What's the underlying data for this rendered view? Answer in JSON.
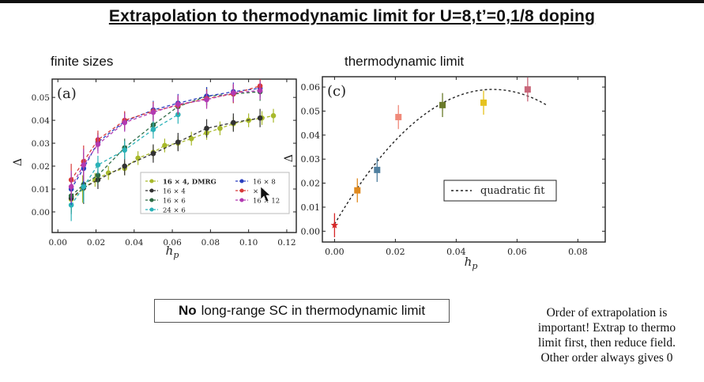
{
  "slide": {
    "title": "Extrapolation to thermodynamic limit  for U=8,t’=0,1/8 doping",
    "label_left": "finite sizes",
    "label_right": "thermodynamic limit",
    "box_bold": "No",
    "box_rest": "long-range SC in thermodynamic limit",
    "note_lines": [
      "Order of extrapolation is",
      "important!  Extrap to thermo",
      "limit first, then reduce field.",
      "Other order always gives 0"
    ]
  },
  "chart_data": [
    {
      "type": "line",
      "panel_label": "(a)",
      "xlabel": "h_p",
      "ylabel": "Δ",
      "xlim": [
        -0.003,
        0.125
      ],
      "ylim": [
        -0.009,
        0.058
      ],
      "xticks": [
        "0.00",
        "0.02",
        "0.04",
        "0.06",
        "0.08",
        "0.10",
        "0.12"
      ],
      "yticks": [
        "0.00",
        "0.01",
        "0.02",
        "0.03",
        "0.04",
        "0.05"
      ],
      "series": [
        {
          "name": "16 × 4, DMRG",
          "color": "#a8b92c",
          "x": [
            0.007,
            0.013,
            0.0195,
            0.0265,
            0.035,
            0.042,
            0.05,
            0.056,
            0.063,
            0.07,
            0.078,
            0.085,
            0.092,
            0.1,
            0.107,
            0.113
          ],
          "y": [
            0.0055,
            0.01,
            0.014,
            0.017,
            0.019,
            0.0235,
            0.026,
            0.029,
            0.03,
            0.032,
            0.0345,
            0.0365,
            0.0385,
            0.04,
            0.041,
            0.042
          ]
        },
        {
          "name": "16 × 4",
          "color": "#333333",
          "x": [
            0.007,
            0.0135,
            0.021,
            0.035,
            0.05,
            0.063,
            0.078,
            0.092,
            0.106
          ],
          "y": [
            0.006,
            0.0105,
            0.014,
            0.02,
            0.0255,
            0.0305,
            0.0365,
            0.039,
            0.041
          ]
        },
        {
          "name": "16 × 6",
          "color": "#2e6b45",
          "x": [
            0.007,
            0.0135,
            0.021,
            0.035,
            0.05,
            0.063,
            0.078,
            0.092,
            0.106
          ],
          "y": [
            0.007,
            0.012,
            0.016,
            0.028,
            0.038,
            0.046,
            0.0505,
            0.0515,
            0.0525
          ]
        },
        {
          "name": "24 × 6",
          "color": "#2bb2b8",
          "x": [
            0.007,
            0.0135,
            0.021,
            0.035,
            0.05,
            0.063
          ],
          "y": [
            0.003,
            0.011,
            0.0205,
            0.027,
            0.036,
            0.0425
          ]
        },
        {
          "name": "16 × 8",
          "color": "#2a3fbf",
          "x": [
            0.007,
            0.0135,
            0.021,
            0.035,
            0.05,
            0.063,
            0.078,
            0.092,
            0.106
          ],
          "y": [
            0.01,
            0.019,
            0.0305,
            0.0395,
            0.0445,
            0.0475,
            0.0505,
            0.0525,
            0.054
          ]
        },
        {
          "name": "× 8",
          "color": "#d73a3a",
          "x": [
            0.007,
            0.0135,
            0.021,
            0.035,
            0.05,
            0.063,
            0.078,
            0.092,
            0.106
          ],
          "y": [
            0.014,
            0.022,
            0.0315,
            0.04,
            0.044,
            0.0465,
            0.0495,
            0.0515,
            0.055
          ]
        },
        {
          "name": "16 × 12",
          "color": "#b23ab2",
          "x": [
            0.007,
            0.0135,
            0.021,
            0.035,
            0.05,
            0.063,
            0.078,
            0.092,
            0.106
          ],
          "y": [
            0.011,
            0.0205,
            0.0295,
            0.039,
            0.0435,
            0.047,
            0.049,
            0.052,
            0.053
          ]
        }
      ]
    },
    {
      "type": "scatter",
      "panel_label": "(c)",
      "xlabel": "h_p",
      "ylabel": "Δ",
      "xlim": [
        -0.004,
        0.089
      ],
      "ylim": [
        -0.0045,
        0.0643
      ],
      "xticks": [
        "0.00",
        "0.02",
        "0.04",
        "0.06",
        "0.08"
      ],
      "yticks": [
        "0.00",
        "0.01",
        "0.02",
        "0.03",
        "0.04",
        "0.05",
        "0.06"
      ],
      "legend": "quadratic fit",
      "points": [
        {
          "x": 0.0,
          "y": 0.0025,
          "color": "#d62728"
        },
        {
          "x": 0.0075,
          "y": 0.017,
          "color": "#e08a1f"
        },
        {
          "x": 0.014,
          "y": 0.0255,
          "color": "#4f7f9f"
        },
        {
          "x": 0.021,
          "y": 0.0475,
          "color": "#f08a7a"
        },
        {
          "x": 0.0355,
          "y": 0.0525,
          "color": "#6a7a2a"
        },
        {
          "x": 0.049,
          "y": 0.0535,
          "color": "#e6c21f"
        },
        {
          "x": 0.0635,
          "y": 0.059,
          "color": "#c9677a"
        }
      ]
    }
  ]
}
